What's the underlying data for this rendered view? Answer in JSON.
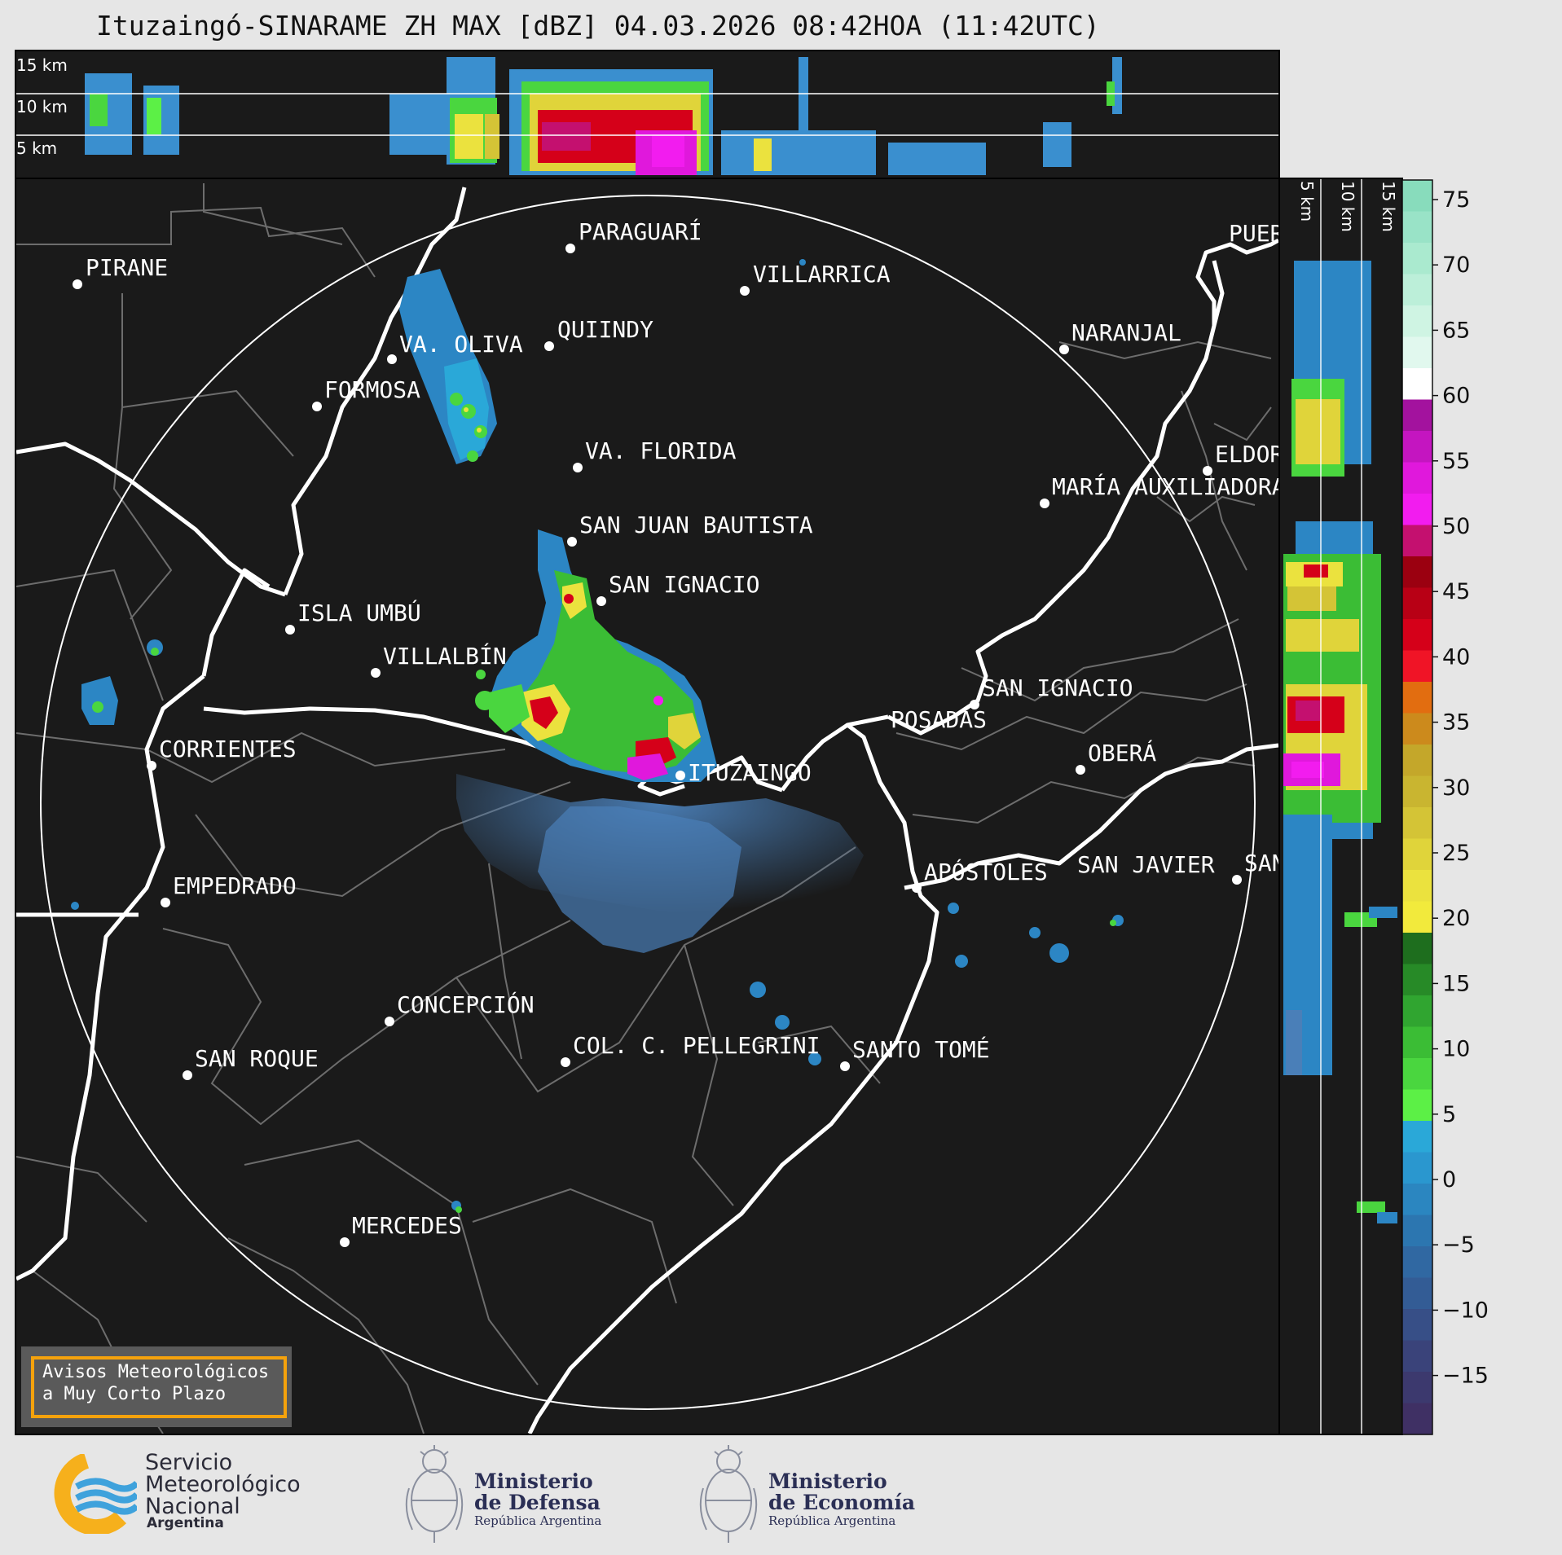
{
  "title": "Ituzaingó-SINARAME ZH MAX [dBZ] 04.03.2026 08:42HOA (11:42UTC)",
  "top_profile": {
    "km_labels": [
      "15 km",
      "10 km",
      "5 km"
    ]
  },
  "side_profile": {
    "km_labels": [
      "5 km",
      "10 km",
      "15 km"
    ]
  },
  "colorbar": {
    "ticks": [
      "75",
      "70",
      "65",
      "60",
      "55",
      "50",
      "45",
      "40",
      "35",
      "30",
      "25",
      "20",
      "15",
      "10",
      "5",
      "0",
      "−5",
      "−10",
      "−15"
    ],
    "colors": [
      "#88dcbc",
      "#99e3c7",
      "#aaeacf",
      "#bcefd9",
      "#cff4e3",
      "#e1f8ee",
      "#ffffff",
      "#a3129e",
      "#c415c0",
      "#e018dc",
      "#f21cef",
      "#c4106f",
      "#9b0010",
      "#b80015",
      "#d50019",
      "#f01426",
      "#e26d10",
      "#cc8a1c",
      "#c4a72a",
      "#c9b530",
      "#d4c436",
      "#e0d43a",
      "#ebe23e",
      "#f2ea3c",
      "#1e6e1e",
      "#278a27",
      "#30a530",
      "#3bbd35",
      "#4ad63f",
      "#5cf046",
      "#2aa8d8",
      "#2a97cf",
      "#2b86c0",
      "#2c76b0",
      "#3068a2",
      "#335c95",
      "#374f87",
      "#3a437a",
      "#3c396e",
      "#3f3064"
    ]
  },
  "places": [
    {
      "name": "PIRANE"
    },
    {
      "name": "PARAGUARÍ"
    },
    {
      "name": "VILLARRICA"
    },
    {
      "name": "QUIINDY"
    },
    {
      "name": "VA. OLIVA"
    },
    {
      "name": "FORMOSA"
    },
    {
      "name": "NARANJAL"
    },
    {
      "name": "VA. FLORIDA"
    },
    {
      "name": "ELDORADO"
    },
    {
      "name": "MARÍA AUXILIADORA"
    },
    {
      "name": "SAN JUAN BAUTISTA"
    },
    {
      "name": "SAN IGNACIO"
    },
    {
      "name": "ISLA UMBÚ"
    },
    {
      "name": "VILLALBÍN"
    },
    {
      "name": "SAN IGNACIO"
    },
    {
      "name": "POSADAS"
    },
    {
      "name": "CORRIENTES"
    },
    {
      "name": "ITUZAINGÓ"
    },
    {
      "name": "OBERÁ"
    },
    {
      "name": "EMPEDRADO"
    },
    {
      "name": "APÓSTOLES"
    },
    {
      "name": "SAN JAVIER"
    },
    {
      "name": "SAN"
    },
    {
      "name": "CONCEPCIÓN"
    },
    {
      "name": "COL. C. PELLEGRINI"
    },
    {
      "name": "SAN ROQUE"
    },
    {
      "name": "SANTO TOMÉ"
    },
    {
      "name": "MERCEDES"
    },
    {
      "name": "PUERTO"
    }
  ],
  "warning": {
    "line1": "Avisos Meteorológicos",
    "line2": "a Muy Corto Plazo"
  },
  "logos": {
    "smn": {
      "line1": "Servicio",
      "line2": "Meteorológico",
      "line3": "Nacional",
      "line4": "Argentina"
    },
    "defensa": {
      "line1": "Ministerio",
      "line2": "de Defensa",
      "line3": "República Argentina"
    },
    "economia": {
      "line1": "Ministerio",
      "line2": "de Economía",
      "line3": "República Argentina"
    }
  }
}
